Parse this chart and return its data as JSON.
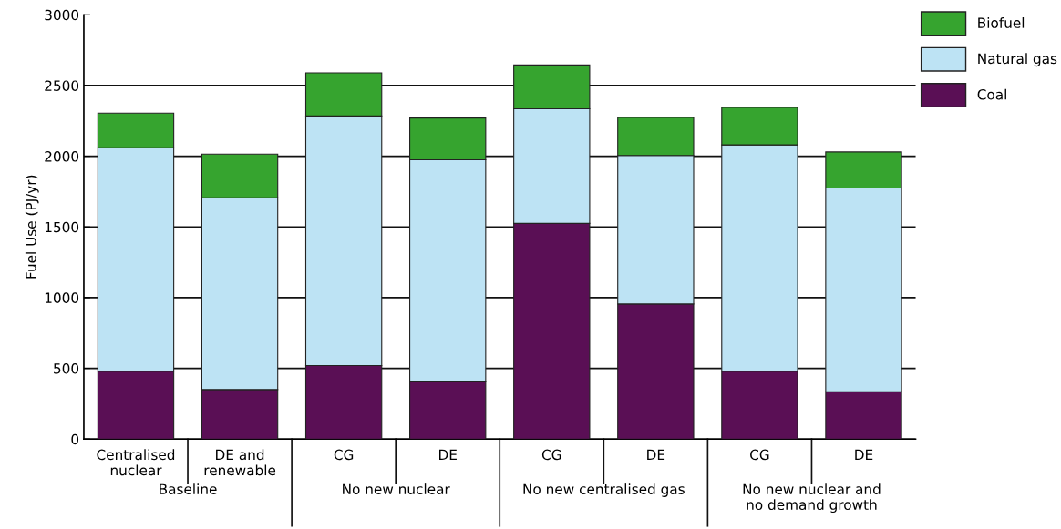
{
  "chart_data": {
    "type": "bar",
    "stacked": true,
    "ylabel": "Fuel Use (PJ/yr)",
    "categories": [
      "Centralised\nnuclear",
      "DE and\nrenewable",
      "CG",
      "DE",
      "CG",
      "DE",
      "CG",
      "DE"
    ],
    "series": [
      {
        "name": "Coal",
        "color": "#5a0f55",
        "values": [
          480,
          350,
          520,
          405,
          1525,
          955,
          480,
          335
        ]
      },
      {
        "name": "Natural gas",
        "color": "#bde3f4",
        "values": [
          1580,
          1355,
          1765,
          1570,
          810,
          1050,
          1600,
          1440
        ]
      },
      {
        "name": "Biofuel",
        "color": "#36a42f",
        "values": [
          245,
          310,
          305,
          295,
          310,
          270,
          265,
          255
        ]
      }
    ],
    "annotations": [
      "Baseline",
      "No new nuclear",
      "No new centralised gas",
      "No new nuclear and\nno demand growth"
    ],
    "ylim": [
      0,
      3000
    ],
    "yticks": [
      0,
      500,
      1000,
      1500,
      2000,
      2500,
      3000
    ],
    "grid": "y",
    "legend": "top right"
  }
}
